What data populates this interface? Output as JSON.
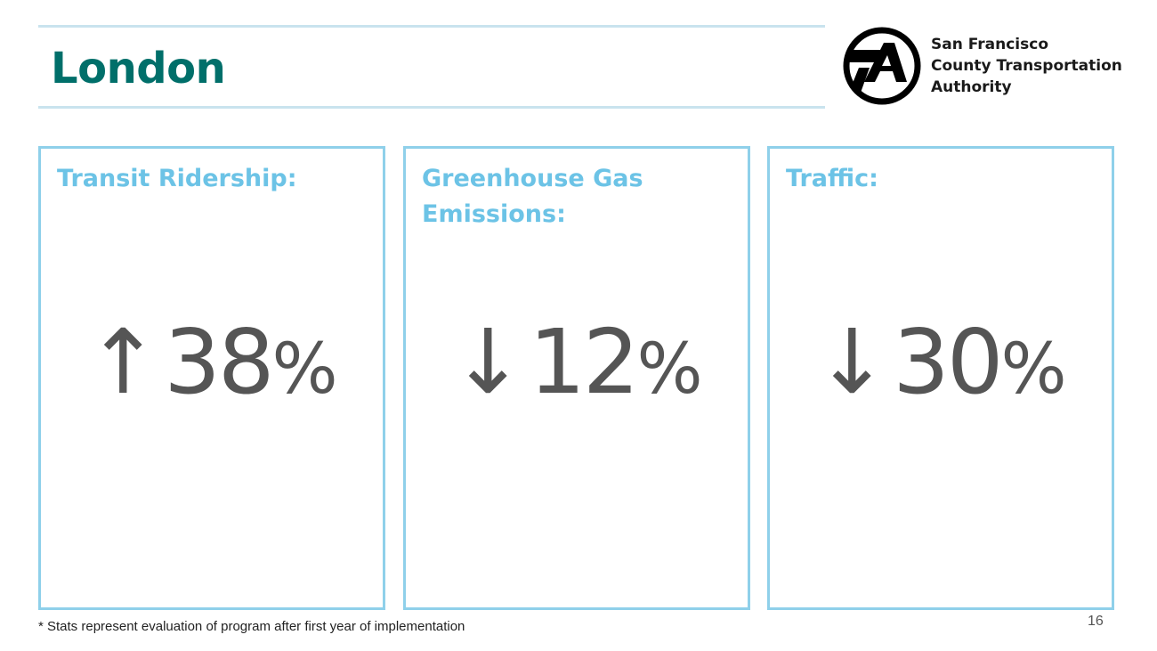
{
  "header": {
    "title": "London"
  },
  "logo": {
    "icon": "sfcta-logo-icon",
    "org_line1": "San Francisco",
    "org_line2": "County Transportation",
    "org_line3": "Authority"
  },
  "panels": [
    {
      "label": "Transit Ridership:",
      "direction": "up",
      "arrow": "↑",
      "value": "38",
      "unit": "%"
    },
    {
      "label": "Greenhouse Gas Emissions:",
      "direction": "down",
      "arrow": "↓",
      "value": "12",
      "unit": "%"
    },
    {
      "label": "Traffic:",
      "direction": "down",
      "arrow": "↓",
      "value": "30",
      "unit": "%"
    }
  ],
  "footer": {
    "note": "* Stats represent evaluation of program after first year of implementation",
    "page_number": "16"
  },
  "colors": {
    "title": "#006f6a",
    "panel_border": "#8fd0ea",
    "panel_label": "#6cc3e6",
    "stat_text": "#555555",
    "rule": "#c9e3ee"
  }
}
